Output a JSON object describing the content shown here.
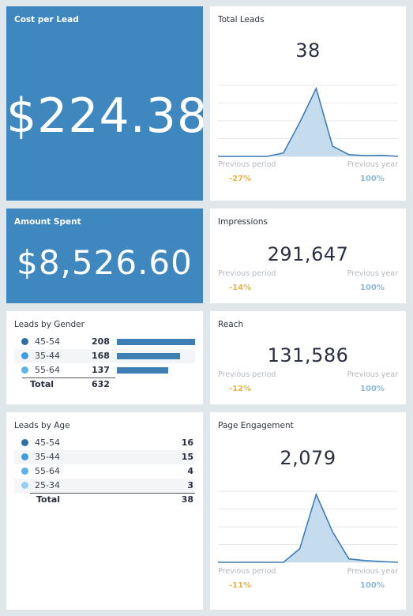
{
  "colors": {
    "accent": "#3f87bf",
    "prev_period": "#e6b44a",
    "prev_year": "#8bbad8",
    "dot_45_54": "#2f6fa8",
    "dot_35_44": "#3d9be0",
    "dot_55_64": "#5ab4ec",
    "dot_25_34": "#93d0f2"
  },
  "cost_per_lead": {
    "title": "Cost per Lead",
    "value": "$224.38"
  },
  "amount_spent": {
    "title": "Amount Spent",
    "value": "$8,526.60"
  },
  "total_leads": {
    "title": "Total Leads",
    "value": "38",
    "prev_period_label": "Previous period",
    "prev_year_label": "Previous year",
    "prev_period_value": "-27%",
    "prev_year_value": "100%",
    "trend": [
      0,
      0,
      0,
      0,
      1,
      10,
      20,
      3,
      0.5,
      0.2,
      0.3,
      0
    ]
  },
  "impressions": {
    "title": "Impressions",
    "value": "291,647",
    "prev_period_label": "Previous period",
    "prev_year_label": "Previous year",
    "prev_period_value": "-14%",
    "prev_year_value": "100%"
  },
  "reach": {
    "title": "Reach",
    "value": "131,586",
    "prev_period_label": "Previous period",
    "prev_year_label": "Previous year",
    "prev_period_value": "-12%",
    "prev_year_value": "100%"
  },
  "page_engagement": {
    "title": "Page Engagement",
    "value": "2,079",
    "prev_period_label": "Previous period",
    "prev_year_label": "Previous year",
    "prev_period_value": "-11%",
    "prev_year_value": "100%",
    "trend": [
      0,
      0,
      0,
      0,
      0,
      4,
      20,
      9,
      1,
      0.5,
      0.2,
      0
    ]
  },
  "leads_by_gender": {
    "title": "Leads by Gender",
    "rows": [
      {
        "label": "45-54",
        "value": "208",
        "share": 1.0
      },
      {
        "label": "35-44",
        "value": "168",
        "share": 0.81
      },
      {
        "label": "55-64",
        "value": "137",
        "share": 0.66
      }
    ],
    "total_label": "Total",
    "total_value": "632"
  },
  "leads_by_age": {
    "title": "Leads by Age",
    "rows": [
      {
        "label": "45-54",
        "value": "16"
      },
      {
        "label": "35-44",
        "value": "15"
      },
      {
        "label": "55-64",
        "value": "4"
      },
      {
        "label": "25-34",
        "value": "3"
      }
    ],
    "total_label": "Total",
    "total_value": "38"
  }
}
